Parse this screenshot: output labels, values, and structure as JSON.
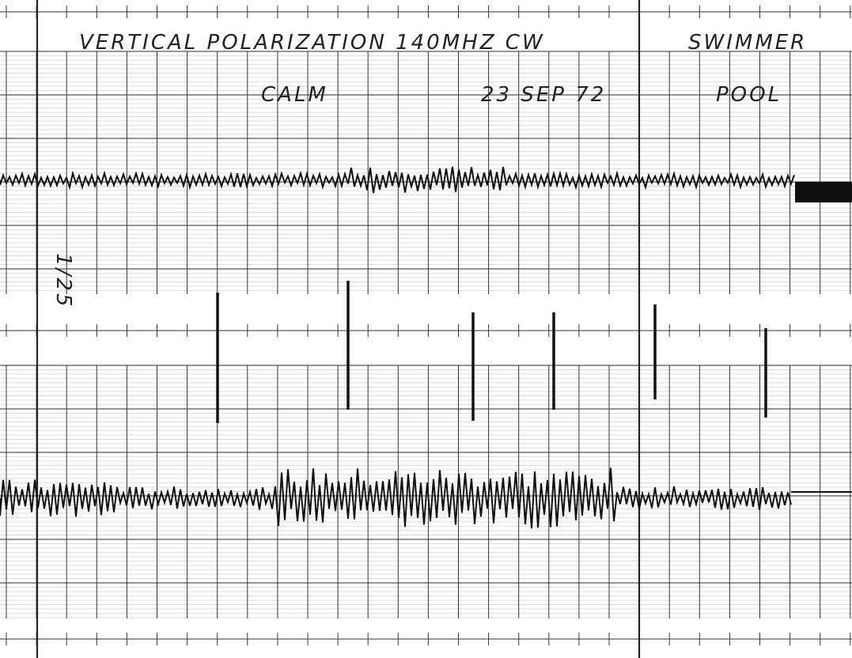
{
  "header": {
    "title": "VERTICAL POLARIZATION 140MHZ CW",
    "subject": "SWIMMER",
    "condition": "CALM",
    "date": "23 SEP 72",
    "location": "POOL"
  },
  "side_note": "1/25"
}
